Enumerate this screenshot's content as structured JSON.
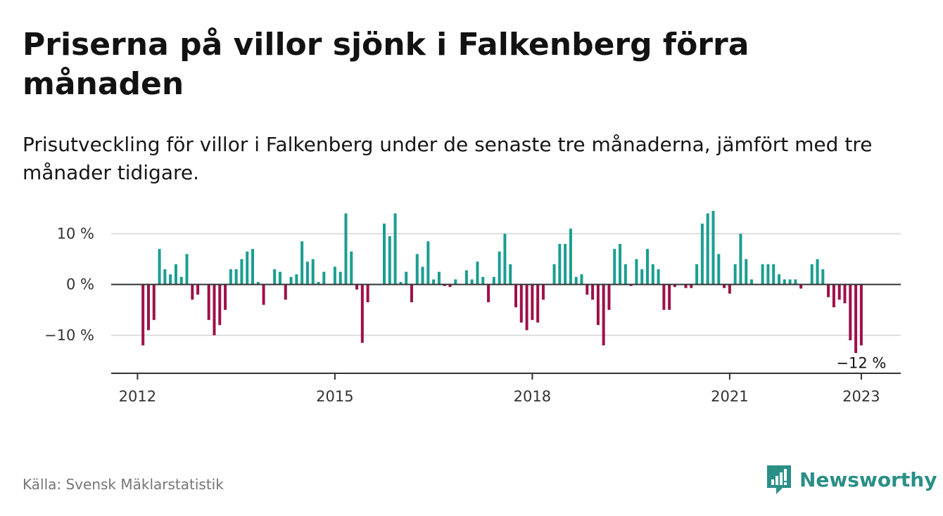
{
  "header": {
    "title": "Priserna på villor sjönk i Falkenberg förra månaden",
    "subtitle": "Prisutveckling för villor i Falkenberg under de senaste tre månaderna, jämfört med tre månader tidigare."
  },
  "footer": {
    "source": "Källa: Svensk Mäklarstatistik",
    "brand": "Newsworthy"
  },
  "colors": {
    "positive": "#1a9e91",
    "negative": "#9e1048",
    "brand": "#2a8f87"
  },
  "chart_data": {
    "type": "bar",
    "title": "",
    "xlabel": "",
    "ylabel": "",
    "ylim": [
      -17.5,
      14.5
    ],
    "yticks": [
      {
        "value": 10,
        "label": "10 %"
      },
      {
        "value": 0,
        "label": "0 %"
      },
      {
        "value": -10,
        "label": "−10 %"
      }
    ],
    "xticks": [
      {
        "value": 2012,
        "label": "2012"
      },
      {
        "value": 2015,
        "label": "2015"
      },
      {
        "value": 2018,
        "label": "2018"
      },
      {
        "value": 2021,
        "label": "2021"
      },
      {
        "value": 2023,
        "label": "2023"
      }
    ],
    "x_start": 2012.0833,
    "x_step": 0.08333,
    "x_end": 2023.6,
    "values": [
      -12,
      -9,
      -7,
      7,
      3,
      2,
      4,
      1.5,
      6,
      -3,
      -2,
      0,
      -7,
      -10,
      -8,
      -5,
      3,
      3,
      5,
      6.5,
      7,
      0.5,
      -4,
      0,
      3,
      2.5,
      -3,
      1.5,
      2,
      8.5,
      4.5,
      5,
      0.5,
      2.5,
      0,
      3.5,
      2.5,
      14,
      6.5,
      -1,
      -11.5,
      -3.5,
      0,
      0,
      12,
      9.5,
      14,
      0.5,
      2.5,
      -3.5,
      6,
      3.5,
      8.5,
      1,
      2.5,
      -0.3,
      -0.5,
      1,
      0,
      2.8,
      1,
      4.5,
      1.5,
      -3.5,
      1.5,
      6.5,
      10,
      4,
      -4.5,
      -7.5,
      -9,
      -7,
      -7.5,
      -3,
      0,
      4,
      8,
      8,
      11,
      1.5,
      2,
      -2,
      -3,
      -8,
      -12,
      -5,
      7,
      8,
      4,
      -0.3,
      5,
      3,
      7,
      4,
      3,
      -5,
      -5,
      -0.5,
      0,
      -0.7,
      -0.7,
      4,
      12,
      14,
      15,
      6,
      -0.7,
      -1.8,
      4,
      10,
      5,
      1,
      0,
      4,
      4,
      4,
      2,
      1,
      1,
      1,
      -0.8,
      0,
      4,
      5,
      3,
      -2.5,
      -4.5,
      -3,
      -3.7,
      -11,
      -13.5,
      -12
    ],
    "annotation": {
      "text": "−12 %",
      "index": 131
    },
    "grid": true,
    "legend": "none"
  }
}
